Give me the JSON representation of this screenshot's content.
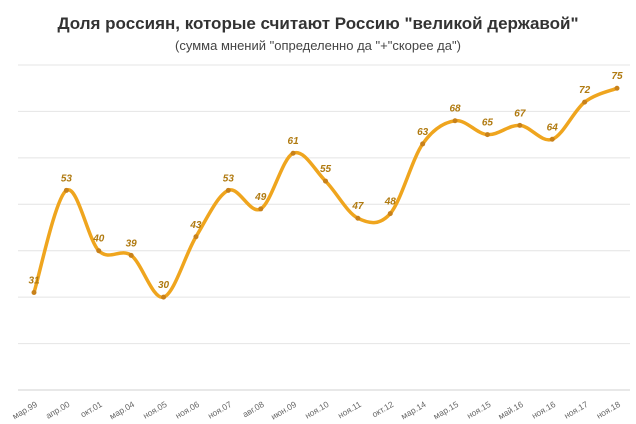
{
  "chart_data": {
    "type": "line",
    "title": "Доля россиян, которые считают Россию \"великой державой\"",
    "subtitle": "(сумма мнений  \"определенно  да \"+\"скорее  да\")",
    "categories": [
      "мар.99",
      "апр.00",
      "окт.01",
      "мар.04",
      "ноя.05",
      "ноя.06",
      "ноя.07",
      "авг.08",
      "июн.09",
      "ноя.10",
      "ноя.11",
      "окт.12",
      "мар.14",
      "мар.15",
      "ноя.15",
      "май.16",
      "ноя.16",
      "ноя.17",
      "ноя.18"
    ],
    "values": [
      31,
      53,
      40,
      39,
      30,
      43,
      53,
      49,
      61,
      55,
      47,
      48,
      63,
      68,
      65,
      67,
      64,
      72,
      75
    ],
    "ylim": [
      10,
      80
    ],
    "grid": true,
    "smooth": true,
    "line_color": "#EFA51E",
    "marker_color": "#C8811A",
    "label_color": "#B07A10"
  }
}
